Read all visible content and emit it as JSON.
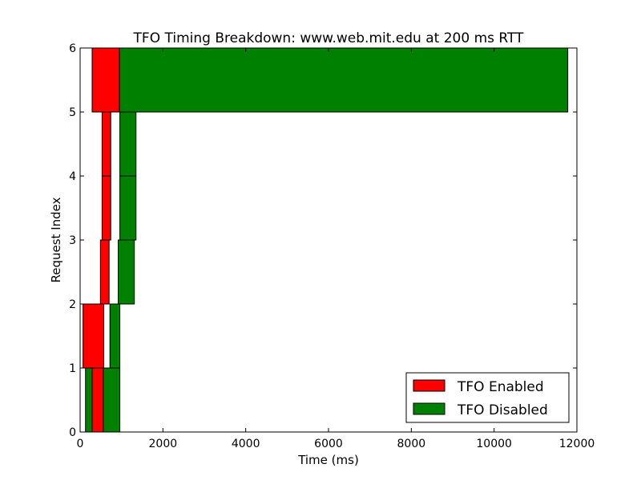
{
  "chart_data": {
    "type": "bar",
    "orientation": "horizontal-intervals",
    "title": "TFO Timing Breakdown: www.web.mit.edu at 200 ms RTT",
    "xlabel": "Time (ms)",
    "ylabel": "Request Index",
    "xlim": [
      0,
      12000
    ],
    "ylim": [
      0,
      6
    ],
    "xticks": [
      "0",
      "2000",
      "4000",
      "6000",
      "8000",
      "10000",
      "12000"
    ],
    "yticks": [
      "0",
      "1",
      "2",
      "3",
      "4",
      "5",
      "6"
    ],
    "grid": false,
    "legend_position": "bottom-right",
    "legend": [
      "TFO Enabled",
      "TFO Disabled"
    ],
    "series": [
      {
        "name": "TFO Enabled",
        "color": "#ff0000",
        "bars": [
          {
            "index": 0,
            "start": 290,
            "end": 560
          },
          {
            "index": 1,
            "start": 70,
            "end": 570
          },
          {
            "index": 2,
            "start": 490,
            "end": 700
          },
          {
            "index": 3,
            "start": 530,
            "end": 740
          },
          {
            "index": 4,
            "start": 530,
            "end": 740
          },
          {
            "index": 5,
            "start": 290,
            "end": 950
          }
        ]
      },
      {
        "name": "TFO Disabled",
        "color": "#008000",
        "bars": [
          {
            "index": 0,
            "start": 130,
            "end": 290
          },
          {
            "index": 0,
            "start": 560,
            "end": 960
          },
          {
            "index": 1,
            "start": 720,
            "end": 960
          },
          {
            "index": 2,
            "start": 920,
            "end": 1310
          },
          {
            "index": 3,
            "start": 960,
            "end": 1350
          },
          {
            "index": 4,
            "start": 960,
            "end": 1350
          },
          {
            "index": 5,
            "start": 950,
            "end": 11780
          }
        ]
      }
    ]
  }
}
